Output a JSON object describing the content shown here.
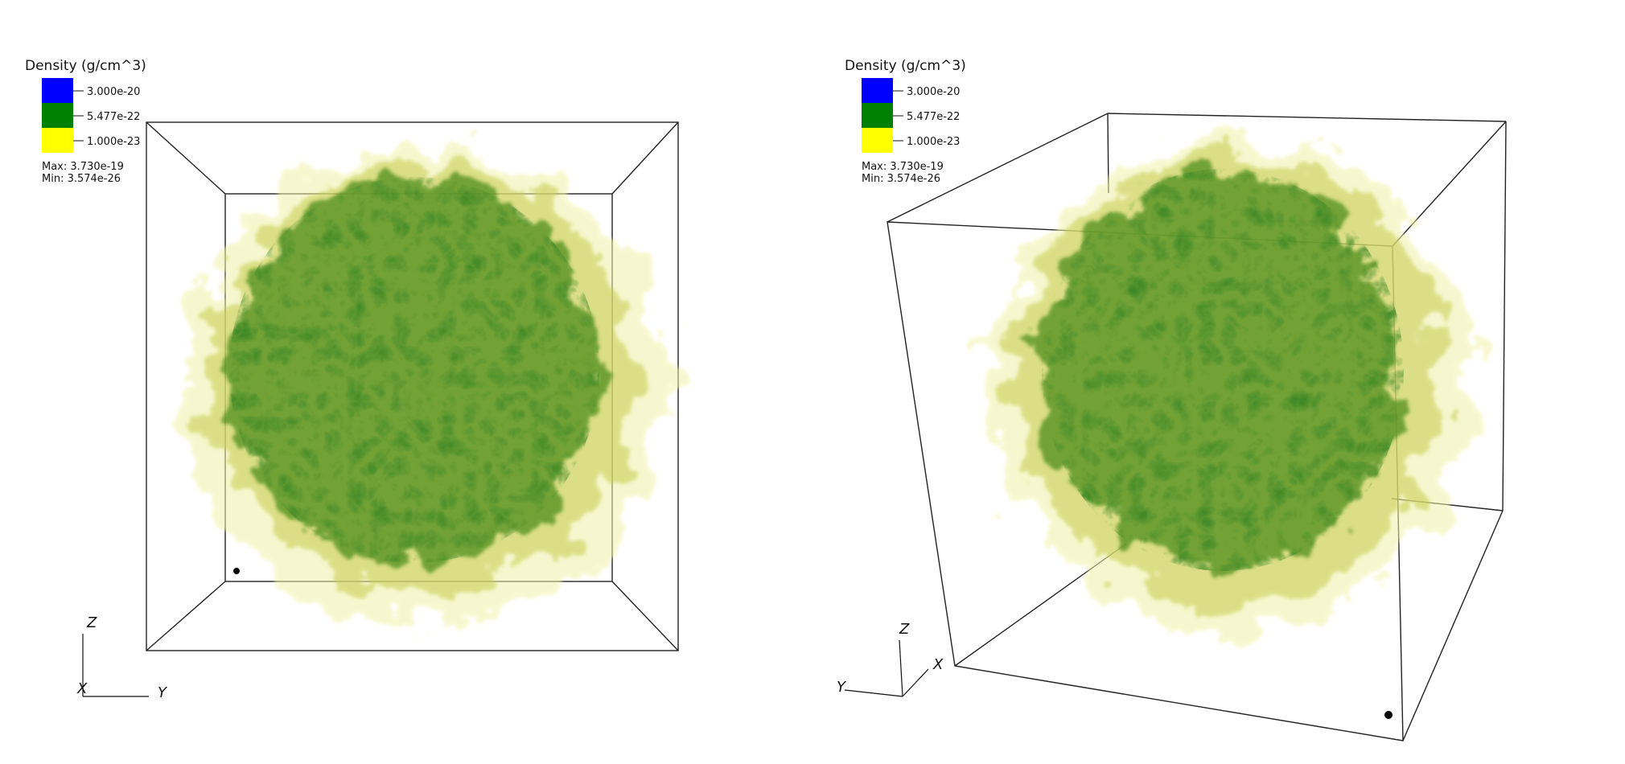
{
  "panels": [
    {
      "legend": {
        "title": "Density (g/cm^3)",
        "entries": [
          {
            "label": "3.000e-20",
            "color": "#0000ff"
          },
          {
            "label": "5.477e-22",
            "color": "#008000"
          },
          {
            "label": "1.000e-23",
            "color": "#ffff00"
          }
        ],
        "max": "Max:  3.730e-19",
        "min": "Min:  3.574e-26"
      },
      "axes": {
        "z": "Z",
        "x": "X",
        "y": "Y"
      }
    },
    {
      "legend": {
        "title": "Density (g/cm^3)",
        "entries": [
          {
            "label": "3.000e-20",
            "color": "#0000ff"
          },
          {
            "label": "5.477e-22",
            "color": "#008000"
          },
          {
            "label": "1.000e-23",
            "color": "#ffff00"
          }
        ],
        "max": "Max:  3.730e-19",
        "min": "Min:  3.574e-26"
      },
      "axes": {
        "z": "Z",
        "x": "X",
        "y": "Y"
      }
    }
  ]
}
